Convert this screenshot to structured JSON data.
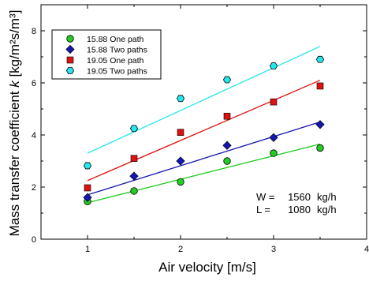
{
  "chart_data": {
    "type": "scatter",
    "xlabel": "Air velocity [m/s]",
    "ylabel_prefix": "Mass transfer coefficient ",
    "ylabel_var": "k",
    "ylabel_unit": " [kg/m²s/m³]",
    "xlim": [
      0.5,
      4.0
    ],
    "ylim": [
      0,
      9
    ],
    "xticks": [
      1,
      2,
      3,
      4
    ],
    "yticks": [
      0,
      2,
      4,
      6,
      8
    ],
    "grid": false,
    "legend_position": "top-left",
    "series": [
      {
        "name": "15.88 One path",
        "marker": "circle",
        "color": "#22cc22",
        "x": [
          1.0,
          1.5,
          2.0,
          2.5,
          3.0,
          3.5
        ],
        "y": [
          1.45,
          1.85,
          2.2,
          3.0,
          3.3,
          3.5
        ],
        "fit": [
          [
            1.0,
            1.4
          ],
          [
            3.5,
            3.65
          ]
        ]
      },
      {
        "name": "15.88 Two paths",
        "marker": "diamond",
        "color": "#1515b0",
        "x": [
          1.0,
          1.5,
          2.0,
          2.5,
          3.0,
          3.5
        ],
        "y": [
          1.6,
          2.42,
          3.0,
          3.6,
          3.9,
          4.4
        ],
        "fit": [
          [
            1.0,
            1.7
          ],
          [
            3.5,
            4.5
          ]
        ]
      },
      {
        "name": "19.05 One path",
        "marker": "square",
        "color": "#dd1111",
        "x": [
          1.0,
          1.5,
          2.0,
          2.5,
          3.0,
          3.5
        ],
        "y": [
          1.97,
          3.1,
          4.1,
          4.72,
          5.27,
          5.88
        ],
        "fit": [
          [
            1.0,
            2.25
          ],
          [
            3.5,
            6.1
          ]
        ]
      },
      {
        "name": "19.05 Two paths",
        "marker": "hexagon",
        "color": "#22e8ee",
        "x": [
          1.0,
          1.5,
          2.0,
          2.5,
          3.0,
          3.5
        ],
        "y": [
          2.82,
          4.25,
          5.4,
          6.12,
          6.65,
          6.9
        ],
        "fit": [
          [
            1.0,
            3.3
          ],
          [
            3.5,
            7.4
          ]
        ]
      }
    ],
    "annotations": [
      {
        "label": "W =",
        "value": "1560",
        "unit": "kg/h"
      },
      {
        "label": "L =",
        "value": "1080",
        "unit": "kg/h"
      }
    ]
  }
}
